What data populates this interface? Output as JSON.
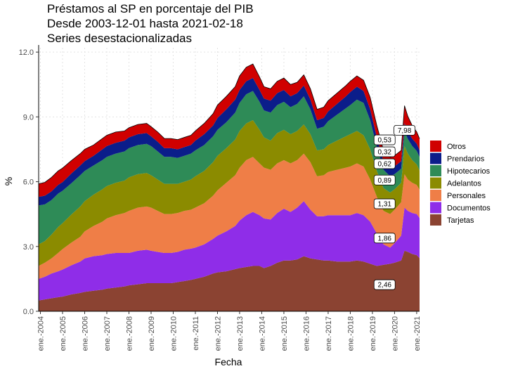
{
  "chart_data": {
    "type": "area",
    "stacked": true,
    "title": [
      "Préstamos al SP en porcentaje del PIB",
      "Desde 2003-12-01 hasta 2021-02-18",
      "Series desestacionalizadas"
    ],
    "xlabel": "Fecha",
    "ylabel": "%",
    "xlim": [
      2003.92,
      2021.13
    ],
    "ylim": [
      0,
      12.2
    ],
    "yticks": [
      0,
      3,
      6,
      9,
      12
    ],
    "ytick_labels": [
      "0.0",
      "3.0",
      "6.0",
      "9.0",
      "12.0"
    ],
    "x_tick_labels": [
      "ene.-2004",
      "ene.-2005",
      "ene.-2006",
      "ene.-2007",
      "ene.-2008",
      "ene.-2009",
      "ene.-2010",
      "ene.-2011",
      "ene.-2012",
      "ene.-2013",
      "ene.-2014",
      "ene.-2015",
      "ene.-2016",
      "ene.-2017",
      "ene.-2018",
      "ene.-2019",
      "ene.-2020",
      "ene.-2021"
    ],
    "grid": true,
    "legend_position": "right",
    "x": [
      2003.92,
      2004.2,
      2004.5,
      2004.8,
      2005.0,
      2005.4,
      2005.8,
      2006.0,
      2006.4,
      2006.8,
      2007.0,
      2007.4,
      2007.8,
      2008.0,
      2008.4,
      2008.8,
      2009.0,
      2009.3,
      2009.6,
      2009.9,
      2010.2,
      2010.5,
      2010.8,
      2011.0,
      2011.4,
      2011.8,
      2012.0,
      2012.4,
      2012.8,
      2013.0,
      2013.3,
      2013.6,
      2013.9,
      2014.1,
      2014.4,
      2014.7,
      2015.0,
      2015.3,
      2015.6,
      2015.9,
      2016.2,
      2016.5,
      2016.8,
      2017.0,
      2017.4,
      2017.8,
      2018.0,
      2018.3,
      2018.6,
      2018.9,
      2019.2,
      2019.5,
      2019.8,
      2020.0,
      2020.3,
      2020.45,
      2020.6,
      2020.8,
      2021.0,
      2021.13
    ],
    "series": [
      {
        "name": "Tarjetas",
        "color": "#8b4332",
        "values": [
          0.5,
          0.55,
          0.6,
          0.65,
          0.68,
          0.78,
          0.85,
          0.9,
          0.95,
          1.0,
          1.05,
          1.1,
          1.15,
          1.2,
          1.25,
          1.3,
          1.3,
          1.3,
          1.3,
          1.3,
          1.35,
          1.4,
          1.45,
          1.5,
          1.6,
          1.75,
          1.8,
          1.85,
          1.95,
          2.0,
          2.05,
          2.1,
          2.1,
          2.0,
          2.1,
          2.25,
          2.35,
          2.35,
          2.4,
          2.55,
          2.45,
          2.4,
          2.35,
          2.35,
          2.3,
          2.3,
          2.3,
          2.35,
          2.3,
          2.2,
          2.1,
          2.15,
          2.2,
          2.25,
          2.35,
          2.8,
          2.75,
          2.65,
          2.6,
          2.46
        ]
      },
      {
        "name": "Documentos",
        "color": "#8f2de8",
        "values": [
          1.0,
          1.05,
          1.15,
          1.2,
          1.25,
          1.35,
          1.45,
          1.55,
          1.6,
          1.6,
          1.6,
          1.6,
          1.55,
          1.5,
          1.55,
          1.55,
          1.5,
          1.45,
          1.4,
          1.4,
          1.4,
          1.45,
          1.45,
          1.45,
          1.5,
          1.6,
          1.7,
          1.85,
          2.0,
          2.2,
          2.4,
          2.5,
          2.35,
          2.3,
          2.15,
          2.3,
          2.4,
          2.25,
          2.4,
          2.55,
          2.25,
          2.0,
          2.05,
          2.1,
          2.15,
          2.15,
          2.15,
          2.2,
          2.15,
          1.95,
          1.5,
          0.95,
          0.75,
          0.9,
          1.15,
          2.0,
          1.9,
          1.9,
          1.9,
          1.86
        ]
      },
      {
        "name": "Personales",
        "color": "#ef7e47",
        "values": [
          0.6,
          0.65,
          0.7,
          0.85,
          0.95,
          1.05,
          1.15,
          1.25,
          1.4,
          1.55,
          1.65,
          1.75,
          1.85,
          1.95,
          2.0,
          2.0,
          2.0,
          1.9,
          1.8,
          1.8,
          1.8,
          1.8,
          1.8,
          1.85,
          1.9,
          2.0,
          2.1,
          2.25,
          2.35,
          2.45,
          2.55,
          2.55,
          2.4,
          2.35,
          2.3,
          2.3,
          2.25,
          2.25,
          2.2,
          2.2,
          2.2,
          1.85,
          1.9,
          2.0,
          2.1,
          2.2,
          2.25,
          2.3,
          2.25,
          1.95,
          1.7,
          1.55,
          1.55,
          1.55,
          1.55,
          1.55,
          1.45,
          1.4,
          1.35,
          1.31
        ]
      },
      {
        "name": "Adelantos",
        "color": "#8b8b00",
        "values": [
          1.0,
          1.0,
          1.1,
          1.2,
          1.2,
          1.3,
          1.4,
          1.4,
          1.45,
          1.5,
          1.5,
          1.5,
          1.5,
          1.55,
          1.55,
          1.55,
          1.5,
          1.45,
          1.4,
          1.4,
          1.35,
          1.35,
          1.4,
          1.45,
          1.5,
          1.55,
          1.6,
          1.6,
          1.65,
          1.7,
          1.7,
          1.7,
          1.55,
          1.4,
          1.35,
          1.4,
          1.4,
          1.35,
          1.35,
          1.35,
          1.3,
          1.2,
          1.2,
          1.25,
          1.35,
          1.45,
          1.5,
          1.5,
          1.45,
          1.4,
          1.2,
          1.05,
          1.0,
          0.95,
          0.9,
          1.3,
          1.2,
          1.05,
          0.95,
          0.89
        ]
      },
      {
        "name": "Hipotecarios",
        "color": "#2e8b57",
        "values": [
          1.8,
          1.7,
          1.6,
          1.55,
          1.5,
          1.45,
          1.45,
          1.4,
          1.35,
          1.35,
          1.35,
          1.35,
          1.35,
          1.35,
          1.35,
          1.35,
          1.35,
          1.3,
          1.25,
          1.25,
          1.2,
          1.2,
          1.2,
          1.2,
          1.2,
          1.2,
          1.2,
          1.2,
          1.25,
          1.3,
          1.35,
          1.35,
          1.3,
          1.25,
          1.3,
          1.3,
          1.3,
          1.25,
          1.25,
          1.3,
          1.15,
          1.0,
          1.05,
          1.1,
          1.2,
          1.3,
          1.35,
          1.45,
          1.5,
          1.35,
          1.1,
          0.85,
          0.75,
          0.7,
          0.65,
          0.7,
          0.68,
          0.65,
          0.63,
          0.62
        ]
      },
      {
        "name": "Prendarios",
        "color": "#0b1d8a",
        "values": [
          0.4,
          0.4,
          0.4,
          0.4,
          0.4,
          0.45,
          0.45,
          0.45,
          0.45,
          0.5,
          0.5,
          0.5,
          0.5,
          0.5,
          0.5,
          0.5,
          0.45,
          0.45,
          0.4,
          0.4,
          0.4,
          0.4,
          0.4,
          0.45,
          0.5,
          0.5,
          0.55,
          0.6,
          0.6,
          0.6,
          0.6,
          0.6,
          0.55,
          0.55,
          0.55,
          0.55,
          0.55,
          0.5,
          0.5,
          0.5,
          0.45,
          0.4,
          0.4,
          0.45,
          0.5,
          0.55,
          0.6,
          0.6,
          0.55,
          0.5,
          0.45,
          0.4,
          0.38,
          0.36,
          0.35,
          0.37,
          0.35,
          0.34,
          0.33,
          0.32
        ]
      },
      {
        "name": "Otros",
        "color": "#d00000",
        "values": [
          0.6,
          0.62,
          0.65,
          0.65,
          0.65,
          0.6,
          0.55,
          0.55,
          0.5,
          0.5,
          0.5,
          0.5,
          0.45,
          0.45,
          0.45,
          0.45,
          0.45,
          0.45,
          0.45,
          0.45,
          0.45,
          0.45,
          0.45,
          0.45,
          0.5,
          0.55,
          0.6,
          0.6,
          0.6,
          0.65,
          0.65,
          0.65,
          0.6,
          0.55,
          0.55,
          0.55,
          0.55,
          0.55,
          0.5,
          0.5,
          0.5,
          0.5,
          0.5,
          0.5,
          0.5,
          0.5,
          0.5,
          0.5,
          0.5,
          0.55,
          0.55,
          0.5,
          0.5,
          0.5,
          0.5,
          0.8,
          0.7,
          0.6,
          0.55,
          0.53
        ]
      }
    ],
    "end_labels": [
      {
        "text": "0,53",
        "series": "Otros"
      },
      {
        "text": "0,32",
        "series": "Prendarios"
      },
      {
        "text": "0,62",
        "series": "Hipotecarios"
      },
      {
        "text": "0,89",
        "series": "Adelantos"
      },
      {
        "text": "1,31",
        "series": "Personales"
      },
      {
        "text": "1,86",
        "series": "Documentos"
      },
      {
        "text": "2,46",
        "series": "Tarjetas"
      }
    ],
    "total_label": "7,98"
  }
}
